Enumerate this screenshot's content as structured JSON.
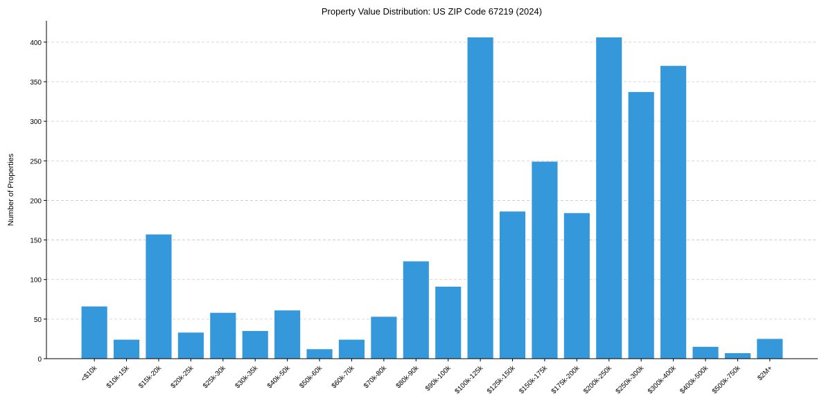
{
  "chart_data": {
    "type": "bar",
    "title": "Property Value Distribution: US ZIP Code 67219 (2024)",
    "xlabel": "",
    "ylabel": "Number of Properties",
    "categories": [
      "<$10k",
      "$10k-15k",
      "$15k-20k",
      "$20k-25k",
      "$25k-30k",
      "$30k-35k",
      "$40k-50k",
      "$50k-60k",
      "$60k-70k",
      "$70k-80k",
      "$80k-90k",
      "$90k-100k",
      "$100k-125k",
      "$125k-150k",
      "$150k-175k",
      "$175k-200k",
      "$200k-250k",
      "$250k-300k",
      "$300k-400k",
      "$400k-500k",
      "$500k-750k",
      "$2M+"
    ],
    "values": [
      66,
      24,
      157,
      33,
      58,
      35,
      61,
      12,
      24,
      53,
      123,
      91,
      406,
      186,
      249,
      184,
      406,
      337,
      370,
      15,
      7,
      25
    ],
    "ylim": [
      0,
      427
    ],
    "yticks": [
      0,
      50,
      100,
      150,
      200,
      250,
      300,
      350,
      400
    ],
    "grid": "y-dashed",
    "legend": "none",
    "bar_color": "#3498db"
  }
}
